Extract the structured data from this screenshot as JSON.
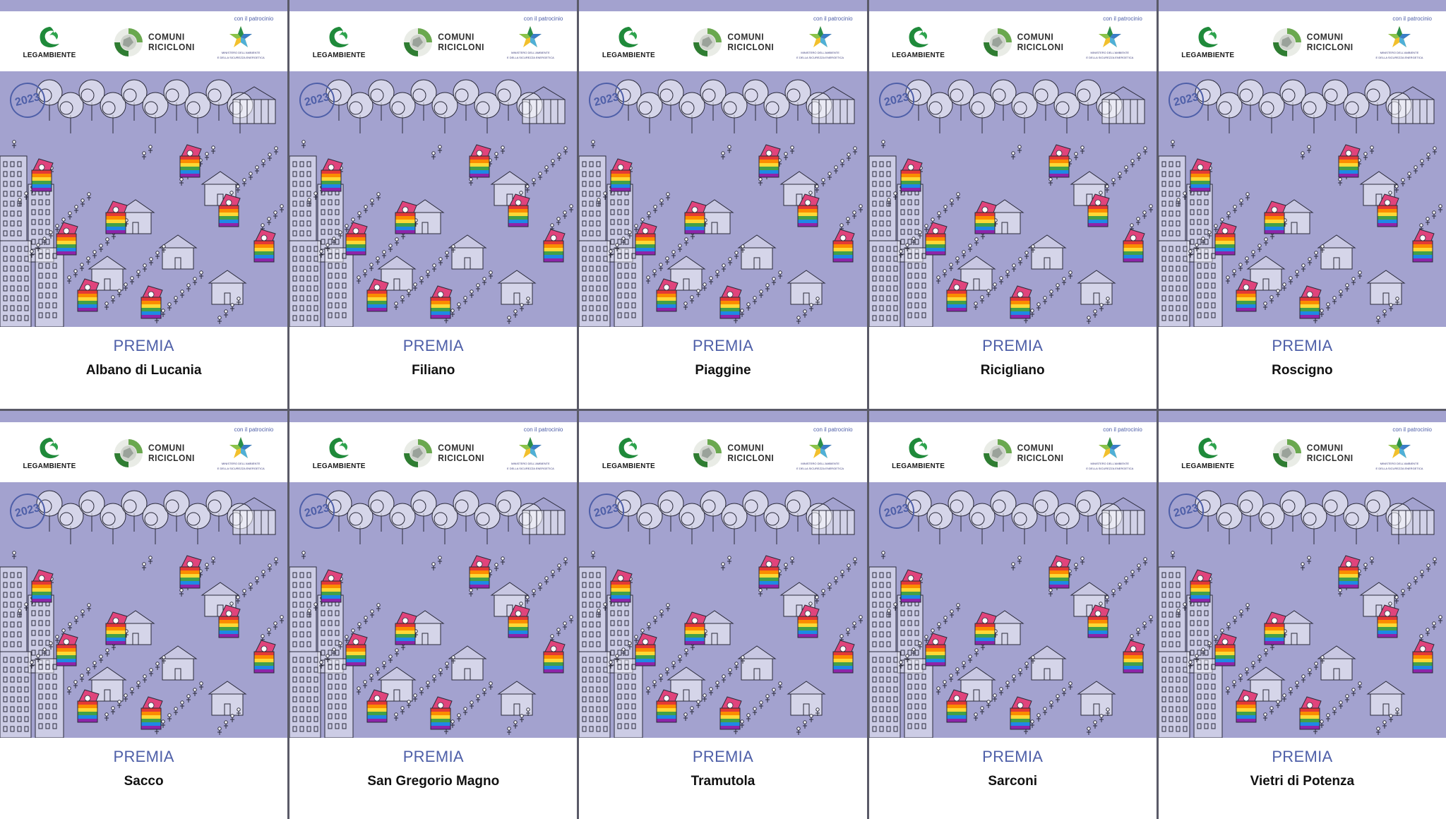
{
  "patrocinio": "con il patrocinio",
  "brand_legambiente": "LEGAMBIENTE",
  "brand_comuni": "COMUNI",
  "brand_ricicloni": "RICICLONI",
  "ministero_line1": "MINISTERO DELL'AMBIENTE",
  "ministero_line2": "E DELLA SICUREZZA ENERGETICA",
  "year": "2023",
  "award_label": "PREMIA",
  "colors": {
    "background": "#a3a2cf",
    "accent_blue": "#4e5fa8",
    "legambiente_green": "#1f8a3a",
    "bin_pink": "#e0447c"
  },
  "cards": [
    {
      "town": "Albano di Lucania"
    },
    {
      "town": "Filiano"
    },
    {
      "town": "Piaggine"
    },
    {
      "town": "Ricigliano"
    },
    {
      "town": "Roscigno"
    },
    {
      "town": "Sacco"
    },
    {
      "town": "San Gregorio Magno"
    },
    {
      "town": "Tramutola"
    },
    {
      "town": "Sarconi"
    },
    {
      "town": "Vietri di Potenza"
    }
  ]
}
